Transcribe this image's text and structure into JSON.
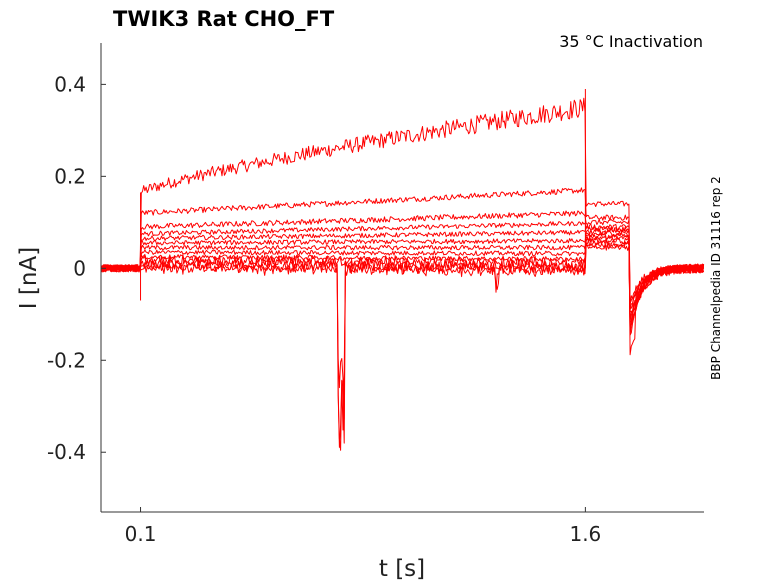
{
  "chart_data": {
    "type": "line",
    "title": "TWIK3  Rat  CHO_FT",
    "subtitle": "35 °C  Inactivation",
    "side_label": "BBP Channelpedia ID 31116 rep 2",
    "xlabel": "t [s]",
    "ylabel": "I [nA]",
    "xlim": [
      -0.0333,
      2.0
    ],
    "ylim": [
      -0.53,
      0.49
    ],
    "x_ticks": [
      0.1,
      1.6
    ],
    "x_tick_labels": [
      "0.1",
      "1.6"
    ],
    "y_ticks": [
      0.4,
      0.2,
      0,
      -0.2,
      -0.4
    ],
    "y_tick_labels": [
      "0.4",
      "0.2",
      "0",
      "-0.2",
      "-0.4"
    ],
    "grid": false,
    "line_color": "#ff0000",
    "pulse_start_s": 0.1,
    "pulse_end_s": 1.6,
    "series": [
      {
        "start": 0.165,
        "end": 0.35,
        "tail": 0.14
      },
      {
        "start": 0.12,
        "end": 0.17,
        "tail": 0.11
      },
      {
        "start": 0.09,
        "end": 0.12,
        "tail": 0.1
      },
      {
        "start": 0.075,
        "end": 0.098,
        "tail": 0.09
      },
      {
        "start": 0.065,
        "end": 0.078,
        "tail": 0.085
      },
      {
        "start": 0.055,
        "end": 0.06,
        "tail": 0.08
      },
      {
        "start": 0.045,
        "end": 0.045,
        "tail": 0.075
      },
      {
        "start": 0.035,
        "end": 0.032,
        "tail": 0.07
      },
      {
        "start": 0.025,
        "end": 0.02,
        "tail": 0.065
      },
      {
        "start": 0.018,
        "end": 0.012,
        "tail": 0.06
      },
      {
        "start": 0.012,
        "end": 0.005,
        "tail": 0.055
      },
      {
        "start": 0.006,
        "end": 0.0,
        "tail": 0.05
      },
      {
        "start": 0.0,
        "end": -0.005,
        "tail": 0.045
      }
    ]
  }
}
